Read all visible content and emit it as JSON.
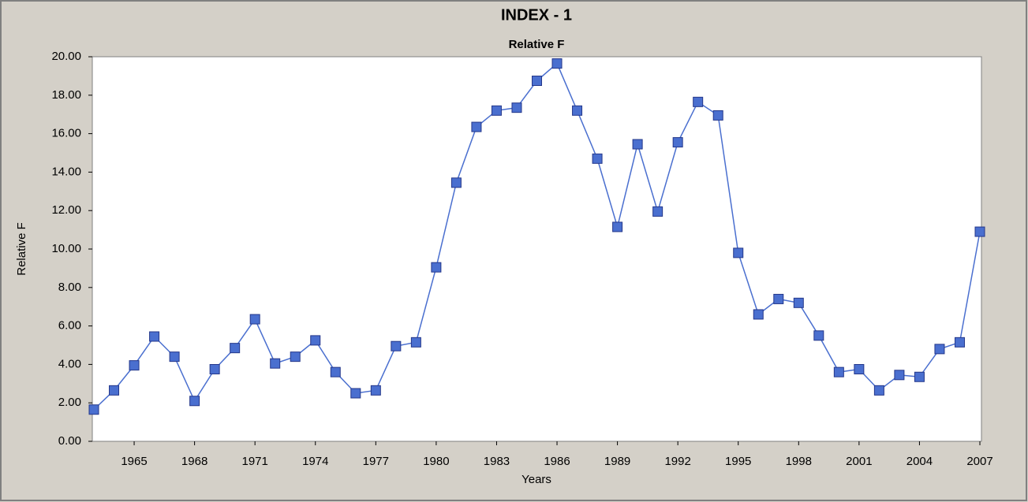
{
  "chart_data": {
    "type": "line",
    "title": "INDEX - 1",
    "subtitle": "Relative F",
    "x_label": "Years",
    "y_label": "Relative F",
    "x": [
      1963,
      1964,
      1965,
      1966,
      1967,
      1968,
      1969,
      1970,
      1971,
      1972,
      1973,
      1974,
      1975,
      1976,
      1977,
      1978,
      1979,
      1980,
      1981,
      1982,
      1983,
      1984,
      1985,
      1986,
      1987,
      1988,
      1989,
      1990,
      1991,
      1992,
      1993,
      1994,
      1995,
      1996,
      1997,
      1998,
      1999,
      2000,
      2001,
      2002,
      2003,
      2004,
      2005,
      2006,
      2007
    ],
    "series": [
      {
        "name": "Relative F",
        "color": "#4a6fcf",
        "values": [
          1.65,
          2.65,
          3.95,
          5.45,
          4.4,
          2.1,
          3.75,
          4.85,
          6.35,
          4.05,
          4.4,
          5.25,
          3.6,
          2.5,
          2.65,
          4.95,
          5.15,
          9.05,
          13.45,
          16.35,
          17.2,
          17.35,
          18.75,
          19.65,
          17.2,
          14.7,
          11.15,
          15.45,
          11.95,
          15.55,
          17.65,
          16.95,
          9.8,
          6.6,
          7.4,
          7.2,
          5.5,
          3.6,
          3.75,
          2.65,
          3.45,
          3.35,
          4.8,
          5.15,
          10.9
        ]
      }
    ],
    "xlim": [
      1963,
      2007
    ],
    "xticks": [
      1965,
      1968,
      1971,
      1974,
      1977,
      1980,
      1983,
      1986,
      1989,
      1992,
      1995,
      1998,
      2001,
      2004,
      2007
    ],
    "ylim": [
      0,
      20
    ],
    "yticks": [
      {
        "value": 0,
        "label": "0.00"
      },
      {
        "value": 2,
        "label": "2.00"
      },
      {
        "value": 4,
        "label": "4.00"
      },
      {
        "value": 6,
        "label": "6.00"
      },
      {
        "value": 8,
        "label": "8.00"
      },
      {
        "value": 10,
        "label": "10.00"
      },
      {
        "value": 12,
        "label": "12.00"
      },
      {
        "value": 14,
        "label": "14.00"
      },
      {
        "value": 16,
        "label": "16.00"
      },
      {
        "value": 18,
        "label": "18.00"
      },
      {
        "value": 20,
        "label": "20.00"
      }
    ]
  }
}
